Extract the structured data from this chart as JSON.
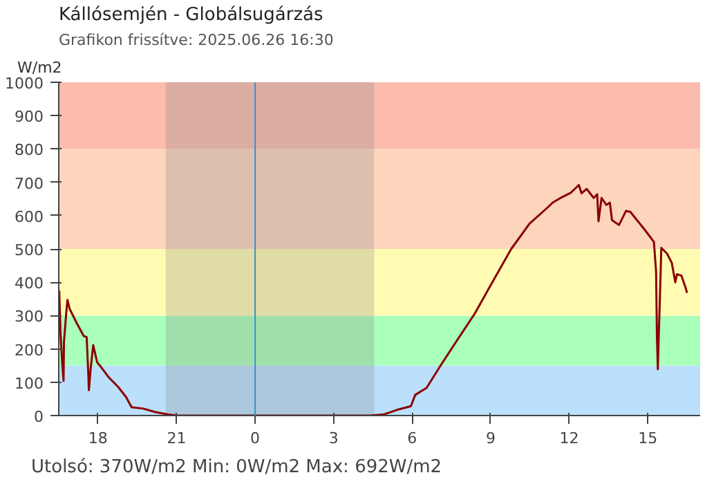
{
  "chart_data": {
    "type": "line",
    "title": "Kállósemjén - Globálsugárzás",
    "subtitle": "Grafikon frissítve: 2025.06.26 16:30",
    "ylabel": "W/m2",
    "annotations": [
      "Utolsó: 370W/m2  Min: 0W/m2  Max: 692W/m2"
    ],
    "xlim": [
      "2025-06-25T16:30",
      "2025-06-26T17:00"
    ],
    "xticks": [
      {
        "value": "2025-06-25T18:00",
        "label": "18"
      },
      {
        "value": "2025-06-25T21:00",
        "label": "21"
      },
      {
        "value": "2025-06-26T00:00",
        "label": "0"
      },
      {
        "value": "2025-06-26T03:00",
        "label": "3"
      },
      {
        "value": "2025-06-26T06:00",
        "label": "6"
      },
      {
        "value": "2025-06-26T09:00",
        "label": "9"
      },
      {
        "value": "2025-06-26T12:00",
        "label": "12"
      },
      {
        "value": "2025-06-26T15:00",
        "label": "15"
      }
    ],
    "ylim": [
      0,
      1000
    ],
    "yticks": [
      0,
      100,
      200,
      300,
      400,
      500,
      600,
      700,
      800,
      900,
      1000
    ],
    "bands": [
      {
        "axis": "y",
        "from": 0,
        "to": 150,
        "color": "#bbe0fb"
      },
      {
        "axis": "y",
        "from": 150,
        "to": 300,
        "color": "#aaffbb"
      },
      {
        "axis": "y",
        "from": 300,
        "to": 500,
        "color": "#fffbb3"
      },
      {
        "axis": "y",
        "from": 500,
        "to": 800,
        "color": "#fdd5bd"
      },
      {
        "axis": "y",
        "from": 800,
        "to": 1000,
        "color": "#fbbcae"
      },
      {
        "axis": "x",
        "from": "2025-06-25T20:35",
        "to": "2025-06-26T04:33",
        "color": "#808080"
      }
    ],
    "ref_lines": [
      {
        "axis": "x",
        "value": "2025-06-26T00:00",
        "color": "#3a8fc8",
        "line_style": "solid"
      }
    ],
    "series": [
      {
        "color": "#8b0000",
        "x": [
          "2025-06-25T16:31",
          "2025-06-25T16:34",
          "2025-06-25T16:38",
          "2025-06-25T16:41",
          "2025-06-25T16:42",
          "2025-06-25T16:47",
          "2025-06-25T16:50",
          "2025-06-25T16:55",
          "2025-06-25T17:11",
          "2025-06-25T17:27",
          "2025-06-25T17:34",
          "2025-06-25T17:38",
          "2025-06-25T17:39",
          "2025-06-25T17:43",
          "2025-06-25T17:49",
          "2025-06-25T17:58",
          "2025-06-25T18:09",
          "2025-06-25T18:25",
          "2025-06-25T18:46",
          "2025-06-25T19:04",
          "2025-06-25T19:17",
          "2025-06-25T19:43",
          "2025-06-25T20:10",
          "2025-06-25T20:41",
          "2025-06-25T21:02",
          "2025-06-26T04:22",
          "2025-06-26T04:54",
          "2025-06-26T05:25",
          "2025-06-26T05:57",
          "2025-06-26T06:07",
          "2025-06-26T06:33",
          "2025-06-26T07:05",
          "2025-06-26T07:41",
          "2025-06-26T08:23",
          "2025-06-26T09:05",
          "2025-06-26T09:47",
          "2025-06-26T10:29",
          "2025-06-26T11:11",
          "2025-06-26T11:22",
          "2025-06-26T11:43",
          "2025-06-26T12:04",
          "2025-06-26T12:22",
          "2025-06-26T12:28",
          "2025-06-26T12:40",
          "2025-06-26T12:56",
          "2025-06-26T13:04",
          "2025-06-26T13:07",
          "2025-06-26T13:14",
          "2025-06-26T13:25",
          "2025-06-26T13:33",
          "2025-06-26T13:38",
          "2025-06-26T13:54",
          "2025-06-26T14:10",
          "2025-06-26T14:20",
          "2025-06-26T14:46",
          "2025-06-26T15:02",
          "2025-06-26T15:14",
          "2025-06-26T15:19",
          "2025-06-26T15:21",
          "2025-06-26T15:23",
          "2025-06-26T15:25",
          "2025-06-26T15:27",
          "2025-06-26T15:31",
          "2025-06-26T15:44",
          "2025-06-26T15:55",
          "2025-06-26T16:03",
          "2025-06-26T16:07",
          "2025-06-26T16:17",
          "2025-06-26T16:26",
          "2025-06-26T16:30"
        ],
        "values": [
          375,
          250,
          154,
          104,
          222,
          305,
          347,
          320,
          278,
          239,
          235,
          118,
          76,
          139,
          211,
          160,
          142,
          114,
          86,
          56,
          25,
          21,
          11,
          3,
          0,
          0,
          3,
          17,
          28,
          62,
          83,
          150,
          222,
          305,
          403,
          500,
          576,
          625,
          639,
          655,
          669,
          692,
          667,
          680,
          653,
          664,
          583,
          653,
          632,
          639,
          586,
          572,
          614,
          611,
          569,
          542,
          521,
          431,
          236,
          139,
          236,
          320,
          503,
          486,
          458,
          400,
          424,
          420,
          386,
          368
        ]
      }
    ]
  }
}
